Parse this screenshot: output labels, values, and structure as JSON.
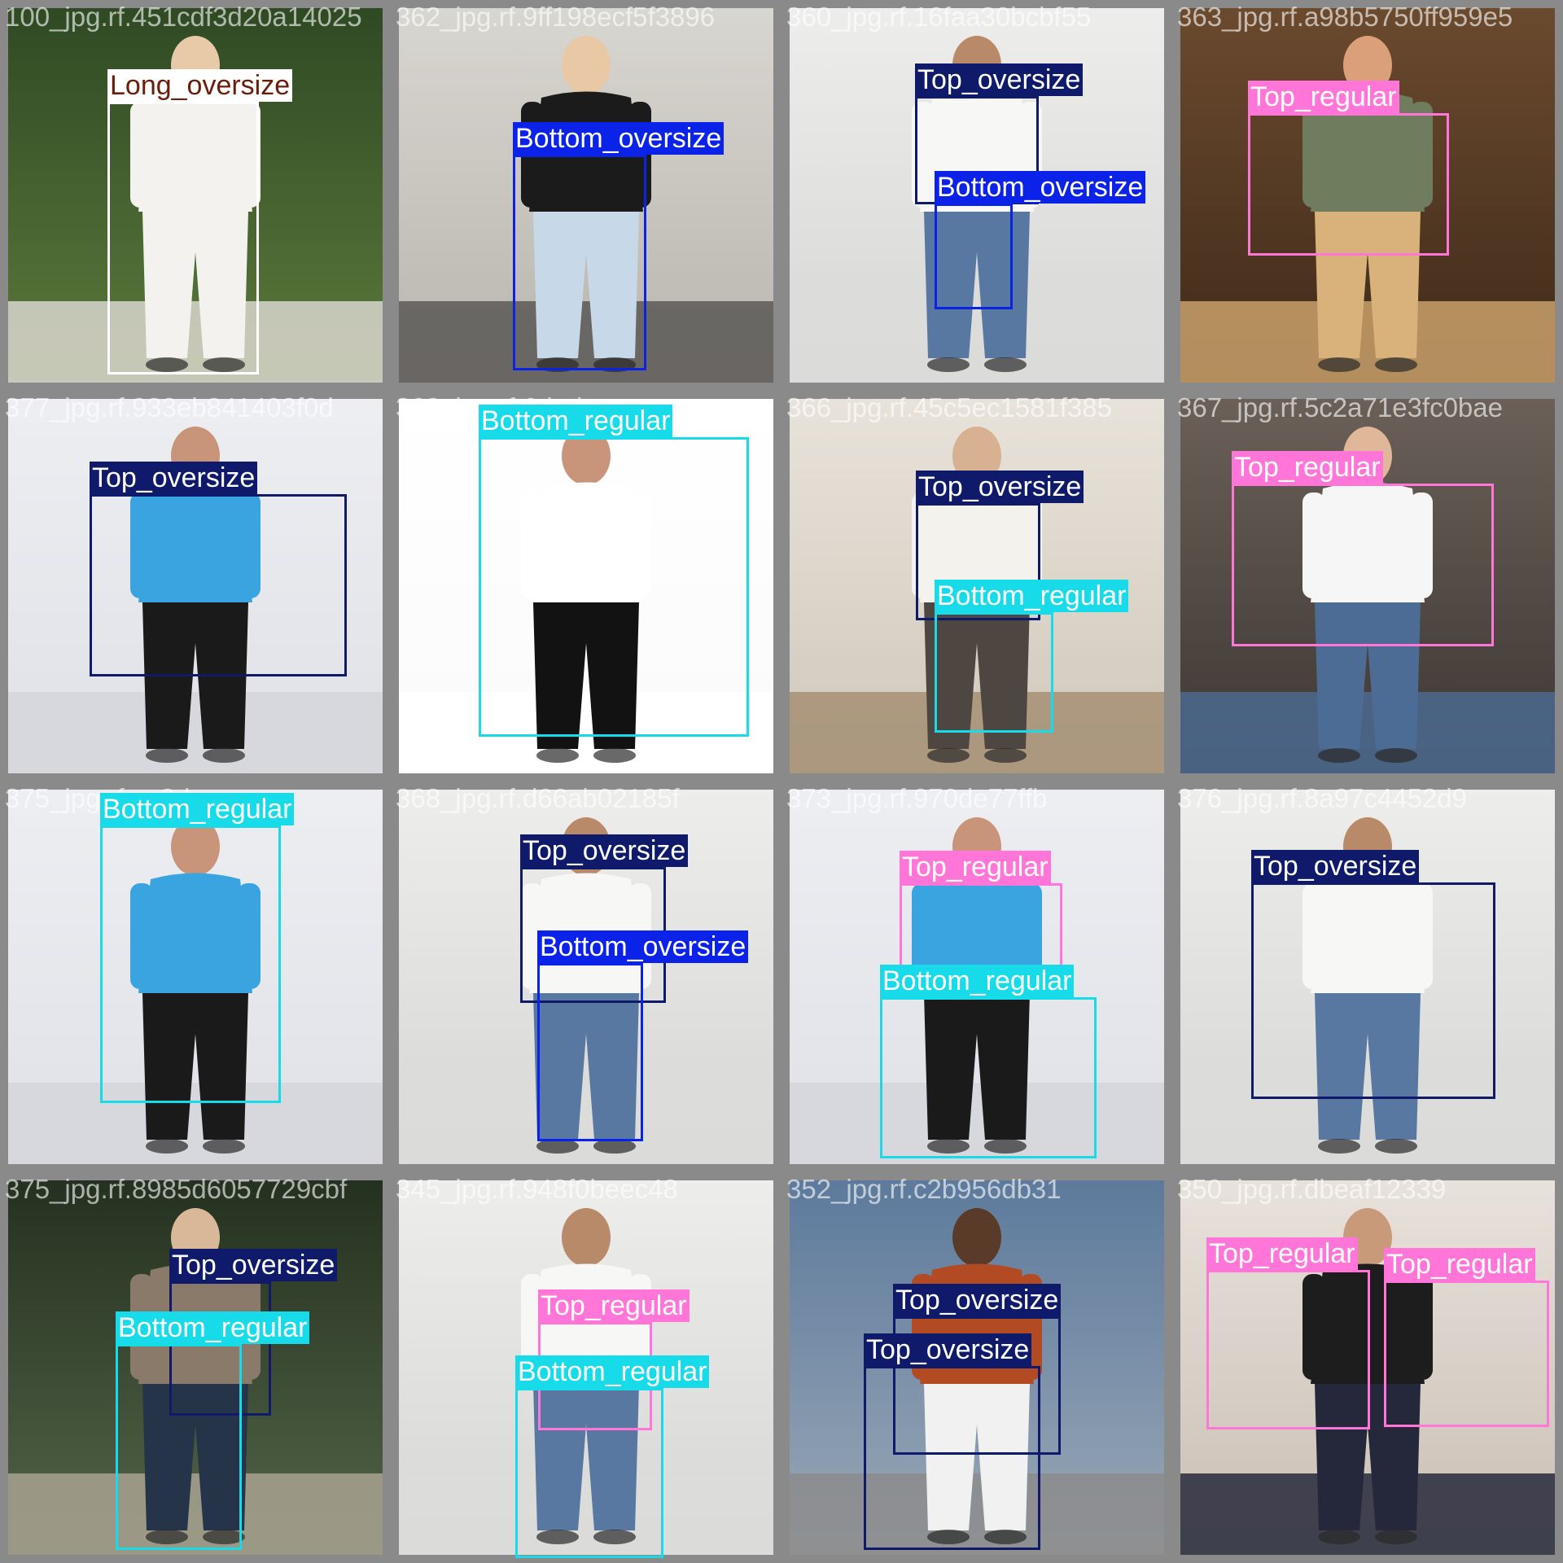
{
  "classes": {
    "Long_oversize": {
      "bg": "#ffffff",
      "text": "#6b1d0c",
      "stroke": "#ffffff"
    },
    "Bottom_oversize": {
      "bg": "#0b23e8",
      "text": "#ffffff",
      "stroke": "#0b23e8"
    },
    "Top_oversize": {
      "bg": "#0f1a6a",
      "text": "#ffffff",
      "stroke": "#0f1a6a"
    },
    "Top_regular": {
      "bg": "#ff76d8",
      "text": "#ffffff",
      "stroke": "#ff76d8"
    },
    "Bottom_regular": {
      "bg": "#17dbe8",
      "text": "#ffffff",
      "stroke": "#17dbe8"
    }
  },
  "tiles": [
    {
      "filename": "100_jpg.rf.451cdf3d20a14025",
      "scene": "garden",
      "labels": [
        "Long_oversize"
      ]
    },
    {
      "filename": "362_jpg.rf.9ff198ecf5f3896",
      "scene": "wall",
      "labels": [
        "Bottom_oversize"
      ]
    },
    {
      "filename": "360_jpg.rf.16faa30bcbf55",
      "scene": "studio",
      "labels": [
        "Top_oversize",
        "Bottom_oversize"
      ]
    },
    {
      "filename": "363_jpg.rf.a98b5750ff959e5",
      "scene": "warm",
      "labels": [
        "Top_regular"
      ]
    },
    {
      "filename": "377_jpg.rf.933eb841403f0d",
      "scene": "light",
      "labels": [
        "Top_oversize"
      ]
    },
    {
      "filename": "368_jpg.rf.6dad",
      "scene": "white",
      "labels": [
        "Bottom_regular"
      ]
    },
    {
      "filename": "366_jpg.rf.45c5ec1581f385",
      "scene": "room",
      "labels": [
        "Top_oversize",
        "Bottom_regular"
      ]
    },
    {
      "filename": "367_jpg.rf.5c2a71e3fc0bae",
      "scene": "street",
      "labels": [
        "Top_regular"
      ]
    },
    {
      "filename": "375_jpg.rf.ce3d",
      "scene": "light",
      "labels": [
        "Bottom_regular"
      ]
    },
    {
      "filename": "368_jpg.rf.d66ab02185f",
      "scene": "studio",
      "labels": [
        "Top_oversize",
        "Bottom_oversize"
      ]
    },
    {
      "filename": "373_jpg.rf.970de77ffb",
      "scene": "light",
      "labels": [
        "Top_regular",
        "Bottom_regular"
      ]
    },
    {
      "filename": "376_jpg.rf.8a97c4452d9",
      "scene": "studio",
      "labels": [
        "Top_oversize"
      ]
    },
    {
      "filename": "375_jpg.rf.8985d6057729cbf",
      "scene": "park",
      "labels": [
        "Top_oversize",
        "Bottom_regular"
      ]
    },
    {
      "filename": "345_jpg.rf.948f0beec48",
      "scene": "studio",
      "labels": [
        "Top_regular",
        "Bottom_regular"
      ]
    },
    {
      "filename": "352_jpg.rf.c2b956db31",
      "scene": "city",
      "labels": [
        "Top_oversize",
        "Top_oversize"
      ]
    },
    {
      "filename": "350_jpg.rf.dbeaf12339",
      "scene": "warmgrey",
      "labels": [
        "Top_regular",
        "Top_regular"
      ]
    }
  ]
}
